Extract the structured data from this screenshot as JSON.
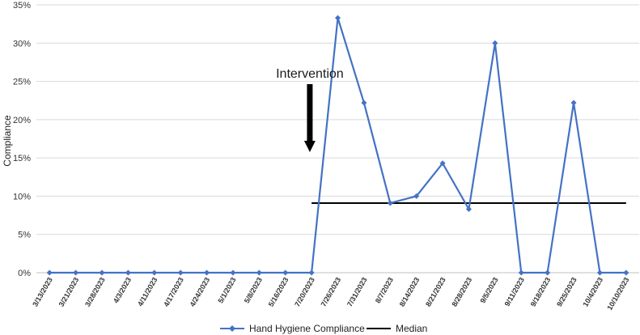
{
  "chart_data": {
    "type": "line",
    "title": "",
    "xlabel": "",
    "ylabel": "Compliance",
    "ylim": [
      0,
      0.35
    ],
    "yticks": [
      "0%",
      "5%",
      "10%",
      "15%",
      "20%",
      "25%",
      "30%",
      "35%"
    ],
    "grid": true,
    "categories": [
      "3/13/2023",
      "3/21/2023",
      "3/28/2023",
      "4/3/2023",
      "4/11/2023",
      "4/17/2023",
      "4/24/2023",
      "5/1/2023",
      "5/8/2023",
      "5/16/2023",
      "7/20/2023",
      "7/26/2023",
      "7/31/2023",
      "8/7/2023",
      "8/14/2023",
      "8/21/2023",
      "8/28/2023",
      "9/5/2023",
      "9/11/2023",
      "9/18/2023",
      "9/25/2023",
      "10/4/2023",
      "10/10/2023"
    ],
    "series": [
      {
        "name": "Hand Hygiene Compliance",
        "color": "#4472c4",
        "marker": "diamond",
        "values": [
          0,
          0,
          0,
          0,
          0,
          0,
          0,
          0,
          0,
          0,
          0,
          0.333,
          0.222,
          0.091,
          0.1,
          0.143,
          0.083,
          0.3,
          0,
          0,
          0.222,
          0,
          0
        ]
      },
      {
        "name": "Median",
        "color": "#000000",
        "value": 0.091,
        "start_index": 10,
        "end_index": 22
      }
    ],
    "annotation": {
      "text": "Intervention",
      "between_indices": [
        9,
        10
      ],
      "arrow": "down"
    },
    "legend_position": "bottom"
  }
}
